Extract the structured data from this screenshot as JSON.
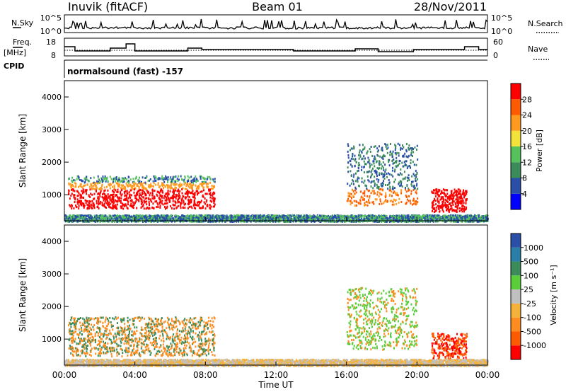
{
  "header": {
    "station": "Inuvik (fitACF)",
    "beam": "Beam 01",
    "date": "28/Nov/2011"
  },
  "panels": {
    "nsky": {
      "label": "N.Sky",
      "ticks_left": [
        "10^5",
        "10^0"
      ],
      "ticks_right": [
        "10^5",
        "10^0"
      ],
      "right_label": "N.Search",
      "right_style": "dotted"
    },
    "freq": {
      "label_line1": "Freq.",
      "label_line2": "[MHz]",
      "ticks_left": [
        "18",
        "8"
      ],
      "ticks_right": [
        "60",
        "0"
      ],
      "right_label": "Nave",
      "right_style": "dotted"
    },
    "cpid": {
      "label": "CPID",
      "text": "normalsound (fast) -157"
    }
  },
  "colors": {
    "power": [
      "#0000ff",
      "#2a4fa8",
      "#3b8c5a",
      "#56c25c",
      "#f2e23a",
      "#ff9a1e",
      "#ff5a00",
      "#ff0000"
    ],
    "velocity": [
      "#ff0000",
      "#ff5a00",
      "#ff8c1e",
      "#f5b23a",
      "#c0c0c0",
      "#5acd3a",
      "#3b8c5a",
      "#2a7fa8",
      "#2a4fa8"
    ]
  },
  "chart_data": [
    {
      "type": "heatmap",
      "name": "power",
      "xlabel": "",
      "ylabel": "Slant Range [km]",
      "yticks": [
        "1000",
        "2000",
        "3000",
        "4000"
      ],
      "ylim": [
        200,
        4500
      ],
      "colorbar_label": "Power [dB]",
      "colorbar_ticks": [
        "4",
        "8",
        "12",
        "16",
        "20",
        "24",
        "28"
      ],
      "colorbar_range": [
        0,
        30
      ],
      "scatter": [
        {
          "x": [
            0.2,
            8.5
          ],
          "y": [
            600,
            1600
          ],
          "value": 28
        },
        {
          "x": [
            16.0,
            20.0
          ],
          "y": [
            700,
            2600
          ],
          "value": 20
        },
        {
          "x": [
            20.8,
            22.8
          ],
          "y": [
            500,
            1200
          ],
          "value": 28
        },
        {
          "x": [
            0.0,
            24.0
          ],
          "y": [
            200,
            400
          ],
          "value": 10
        }
      ]
    },
    {
      "type": "heatmap",
      "name": "velocity",
      "xlabel": "Time UT",
      "ylabel": "Slant Range [km]",
      "yticks": [
        "1000",
        "2000",
        "3000",
        "4000"
      ],
      "ylim": [
        200,
        4500
      ],
      "xticks": [
        "00:00",
        "04:00",
        "08:00",
        "12:00",
        "16:00",
        "20:00",
        "00:00"
      ],
      "xlim": [
        0,
        24
      ],
      "colorbar_label": "Velocity [m s⁻¹]",
      "colorbar_ticks": [
        "1000",
        "500",
        "100",
        "25",
        "-25",
        "-100",
        "-500",
        "-1000"
      ],
      "scatter": [
        {
          "x": [
            0.2,
            8.5
          ],
          "y": [
            500,
            1700
          ],
          "value": -200
        },
        {
          "x": [
            16.0,
            20.0
          ],
          "y": [
            700,
            2600
          ],
          "value": 150
        },
        {
          "x": [
            20.8,
            22.8
          ],
          "y": [
            400,
            1200
          ],
          "value": -600
        },
        {
          "x": [
            0.0,
            24.0
          ],
          "y": [
            200,
            400
          ],
          "value": -50
        }
      ]
    }
  ]
}
